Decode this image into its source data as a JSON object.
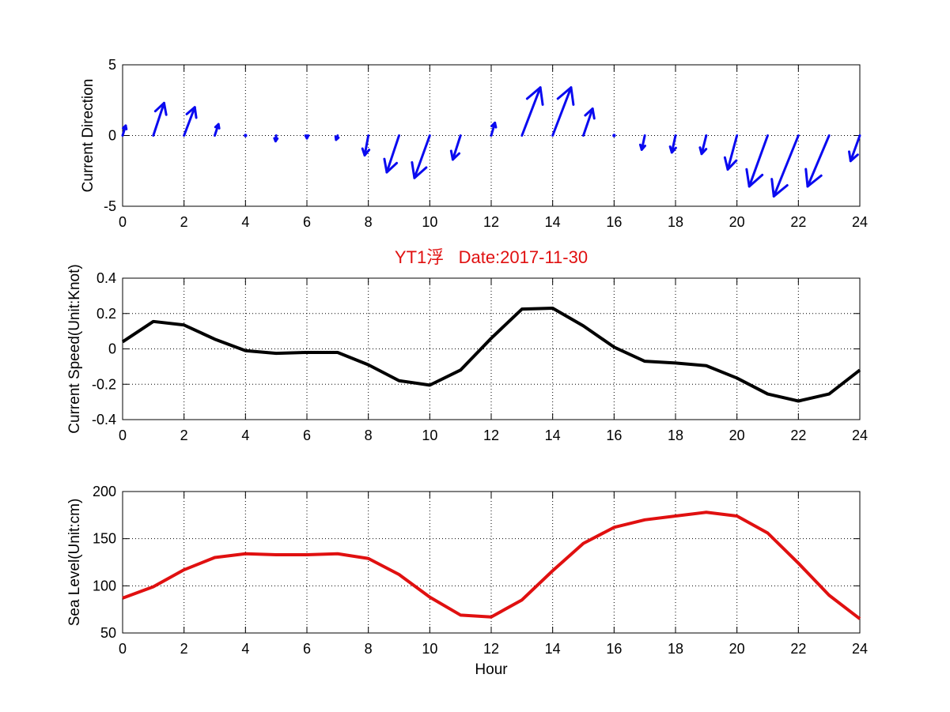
{
  "figure_title": "YT1浮   Date:2017-11-30",
  "colors": {
    "title": "#e01010",
    "arrows": "#0a0af0",
    "speed_line": "#000000",
    "sea_level_line": "#e01010",
    "grid": "#000000"
  },
  "chart_data": [
    {
      "type": "quiver",
      "title": "",
      "xlabel": "",
      "ylabel": "Current Direction",
      "xlim": [
        0,
        24
      ],
      "ylim": [
        -5,
        5
      ],
      "xticks": [
        "0",
        "2",
        "4",
        "6",
        "8",
        "10",
        "12",
        "14",
        "16",
        "18",
        "20",
        "22",
        "24"
      ],
      "yticks": [
        "-5",
        "0",
        "5"
      ],
      "grid": true,
      "x": [
        0,
        1,
        2,
        3,
        4,
        5,
        6,
        7,
        8,
        9,
        10,
        11,
        12,
        13,
        14,
        15,
        16,
        17,
        18,
        19,
        20,
        21,
        22,
        23,
        24
      ],
      "u": [
        0.1,
        0.35,
        0.35,
        0.12,
        0.0,
        -0.02,
        0.0,
        -0.05,
        -0.12,
        -0.4,
        -0.5,
        -0.25,
        0.12,
        0.6,
        0.6,
        0.3,
        0.0,
        -0.1,
        -0.12,
        -0.15,
        -0.3,
        -0.6,
        -0.8,
        -0.7,
        -0.3
      ],
      "v": [
        0.7,
        2.3,
        2.0,
        0.8,
        -0.1,
        -0.4,
        -0.2,
        -0.3,
        -1.4,
        -2.6,
        -3.0,
        -1.7,
        0.9,
        3.4,
        3.4,
        1.9,
        0.1,
        -1.0,
        -1.2,
        -1.3,
        -2.4,
        -3.6,
        -4.3,
        -3.6,
        -1.8
      ]
    },
    {
      "type": "line",
      "title": "YT1浮   Date:2017-11-30",
      "xlabel": "",
      "ylabel": "Current Speed(Unit:Knot)",
      "xlim": [
        0,
        24
      ],
      "ylim": [
        -0.4,
        0.4
      ],
      "xticks": [
        "0",
        "2",
        "4",
        "6",
        "8",
        "10",
        "12",
        "14",
        "16",
        "18",
        "20",
        "22",
        "24"
      ],
      "yticks": [
        "-0.4",
        "-0.2",
        "0",
        "0.2",
        "0.4"
      ],
      "grid": true,
      "x": [
        0,
        1,
        2,
        3,
        4,
        5,
        6,
        7,
        8,
        9,
        10,
        11,
        12,
        13,
        14,
        15,
        16,
        17,
        18,
        19,
        20,
        21,
        22,
        23,
        24
      ],
      "values": [
        0.04,
        0.155,
        0.135,
        0.055,
        -0.01,
        -0.025,
        -0.02,
        -0.02,
        -0.09,
        -0.18,
        -0.205,
        -0.12,
        0.06,
        0.225,
        0.23,
        0.13,
        0.01,
        -0.07,
        -0.08,
        -0.095,
        -0.165,
        -0.255,
        -0.295,
        -0.255,
        -0.12
      ]
    },
    {
      "type": "line",
      "title": "",
      "xlabel": "Hour",
      "ylabel": "Sea Level(Unit:cm)",
      "xlim": [
        0,
        24
      ],
      "ylim": [
        50,
        200
      ],
      "xticks": [
        "0",
        "2",
        "4",
        "6",
        "8",
        "10",
        "12",
        "14",
        "16",
        "18",
        "20",
        "22",
        "24"
      ],
      "yticks": [
        "50",
        "100",
        "150",
        "200"
      ],
      "grid": true,
      "x": [
        0,
        1,
        2,
        3,
        4,
        5,
        6,
        7,
        8,
        9,
        10,
        11,
        12,
        13,
        14,
        15,
        16,
        17,
        18,
        19,
        20,
        21,
        22,
        23,
        24
      ],
      "values": [
        87,
        99,
        117,
        130,
        134,
        133,
        133,
        134,
        129,
        112,
        88,
        69,
        67,
        85,
        116,
        145,
        162,
        170,
        174,
        178,
        174,
        156,
        124,
        90,
        65
      ]
    }
  ]
}
